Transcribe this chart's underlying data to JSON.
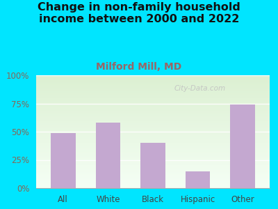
{
  "title": "Change in non-family household\nincome between 2000 and 2022",
  "subtitle": "Milford Mill, MD",
  "categories": [
    "All",
    "White",
    "Black",
    "Hispanic",
    "Other"
  ],
  "values": [
    49,
    58,
    40,
    15,
    74
  ],
  "bar_color": "#c4a8d0",
  "title_fontsize": 11.5,
  "subtitle_fontsize": 10,
  "subtitle_color": "#996666",
  "title_color": "#111111",
  "background_color": "#00e5ff",
  "ylim": [
    0,
    100
  ],
  "yticks": [
    0,
    25,
    50,
    75,
    100
  ],
  "ytick_labels": [
    "0%",
    "25%",
    "50%",
    "75%",
    "100%"
  ],
  "tick_color": "#886655",
  "watermark": "City-Data.com",
  "plot_bg_colors": [
    "#f5fdf0",
    "#eefaee",
    "#e4f7e0",
    "#ddf3d8"
  ],
  "bar_width": 0.55
}
